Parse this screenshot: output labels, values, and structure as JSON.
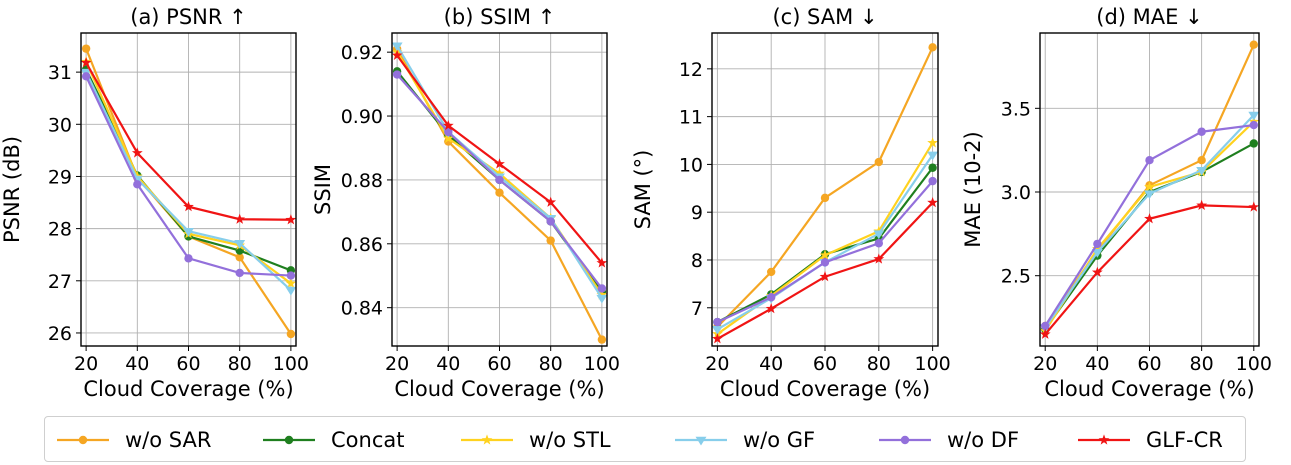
{
  "legend": [
    {
      "name": "w/o SAR",
      "color": "#f5a623",
      "marker": "circle"
    },
    {
      "name": "Concat",
      "color": "#1f7f1f",
      "marker": "circle"
    },
    {
      "name": "w/o STL",
      "color": "#ffd21f",
      "marker": "star"
    },
    {
      "name": "w/o GF",
      "color": "#87ceeb",
      "marker": "triangle-down"
    },
    {
      "name": "w/o DF",
      "color": "#9370db",
      "marker": "circle"
    },
    {
      "name": "GLF-CR",
      "color": "#f01414",
      "marker": "star"
    }
  ],
  "chart_data": [
    {
      "type": "line",
      "title": "(a) PSNR ↑",
      "xlabel": "Cloud Coverage (%)",
      "ylabel": "PSNR (dB)",
      "x": [
        20,
        40,
        60,
        80,
        100
      ],
      "xticks": [
        "20",
        "40",
        "60",
        "80",
        "100"
      ],
      "yticks": [
        "26",
        "27",
        "28",
        "29",
        "30",
        "31"
      ],
      "ytick_values": [
        26,
        27,
        28,
        29,
        30,
        31
      ],
      "xlim": [
        18,
        102
      ],
      "ylim": [
        25.75,
        31.75
      ],
      "grid": true,
      "series": [
        {
          "name": "w/o SAR",
          "values": [
            31.45,
            28.98,
            27.85,
            27.45,
            25.98
          ]
        },
        {
          "name": "Concat",
          "values": [
            31.05,
            29.02,
            27.85,
            27.58,
            27.2
          ]
        },
        {
          "name": "w/o STL",
          "values": [
            31.2,
            29.0,
            27.9,
            27.68,
            26.95
          ]
        },
        {
          "name": "w/o GF",
          "values": [
            31.0,
            28.95,
            27.95,
            27.72,
            26.82
          ]
        },
        {
          "name": "w/o DF",
          "values": [
            30.92,
            28.85,
            27.43,
            27.15,
            27.1
          ]
        },
        {
          "name": "GLF-CR",
          "values": [
            31.18,
            29.45,
            28.42,
            28.18,
            28.17
          ]
        }
      ]
    },
    {
      "type": "line",
      "title": "(b) SSIM ↑",
      "xlabel": "Cloud Coverage (%)",
      "ylabel": "SSIM",
      "x": [
        20,
        40,
        60,
        80,
        100
      ],
      "xticks": [
        "20",
        "40",
        "60",
        "80",
        "100"
      ],
      "yticks": [
        "0.84",
        "0.86",
        "0.88",
        "0.90",
        "0.92"
      ],
      "ytick_values": [
        0.84,
        0.86,
        0.88,
        0.9,
        0.92
      ],
      "xlim": [
        18,
        102
      ],
      "ylim": [
        0.828,
        0.926
      ],
      "grid": true,
      "series": [
        {
          "name": "w/o SAR",
          "values": [
            0.921,
            0.892,
            0.876,
            0.861,
            0.83
          ]
        },
        {
          "name": "Concat",
          "values": [
            0.914,
            0.894,
            0.88,
            0.867,
            0.845
          ]
        },
        {
          "name": "w/o STL",
          "values": [
            0.92,
            0.893,
            0.882,
            0.868,
            0.844
          ]
        },
        {
          "name": "w/o GF",
          "values": [
            0.922,
            0.895,
            0.881,
            0.868,
            0.843
          ]
        },
        {
          "name": "w/o DF",
          "values": [
            0.913,
            0.895,
            0.88,
            0.867,
            0.846
          ]
        },
        {
          "name": "GLF-CR",
          "values": [
            0.919,
            0.897,
            0.885,
            0.873,
            0.854
          ]
        }
      ]
    },
    {
      "type": "line",
      "title": "(c) SAM ↓",
      "xlabel": "Cloud Coverage (%)",
      "ylabel": "SAM (°)",
      "x": [
        20,
        40,
        60,
        80,
        100
      ],
      "xticks": [
        "20",
        "40",
        "60",
        "80",
        "100"
      ],
      "yticks": [
        "7",
        "8",
        "9",
        "10",
        "11",
        "12"
      ],
      "ytick_values": [
        7,
        8,
        9,
        10,
        11,
        12
      ],
      "xlim": [
        18,
        102
      ],
      "ylim": [
        6.2,
        12.75
      ],
      "grid": true,
      "series": [
        {
          "name": "w/o SAR",
          "values": [
            6.6,
            7.75,
            9.3,
            10.05,
            12.45
          ]
        },
        {
          "name": "Concat",
          "values": [
            6.7,
            7.28,
            8.12,
            8.45,
            9.93
          ]
        },
        {
          "name": "w/o STL",
          "values": [
            6.45,
            7.25,
            8.1,
            8.6,
            10.45
          ]
        },
        {
          "name": "w/o GF",
          "values": [
            6.55,
            7.2,
            7.95,
            8.55,
            10.2
          ]
        },
        {
          "name": "w/o DF",
          "values": [
            6.7,
            7.22,
            7.95,
            8.35,
            9.65
          ]
        },
        {
          "name": "GLF-CR",
          "values": [
            6.35,
            6.98,
            7.65,
            8.02,
            9.2
          ]
        }
      ]
    },
    {
      "type": "line",
      "title": "(d) MAE ↓",
      "xlabel": "Cloud Coverage (%)",
      "ylabel": "MAE (10-2)",
      "x": [
        20,
        40,
        60,
        80,
        100
      ],
      "xticks": [
        "20",
        "40",
        "60",
        "80",
        "100"
      ],
      "yticks": [
        "2.5",
        "3.0",
        "3.5"
      ],
      "ytick_values": [
        2.5,
        3.0,
        3.5
      ],
      "xlim": [
        18,
        102
      ],
      "ylim": [
        2.08,
        3.95
      ],
      "grid": true,
      "series": [
        {
          "name": "w/o SAR",
          "values": [
            2.2,
            2.65,
            3.04,
            3.19,
            3.88
          ]
        },
        {
          "name": "Concat",
          "values": [
            2.18,
            2.62,
            3.0,
            3.12,
            3.29
          ]
        },
        {
          "name": "w/o STL",
          "values": [
            2.17,
            2.66,
            3.03,
            3.12,
            3.42
          ]
        },
        {
          "name": "w/o GF",
          "values": [
            2.19,
            2.64,
            2.99,
            3.13,
            3.46
          ]
        },
        {
          "name": "w/o DF",
          "values": [
            2.2,
            2.69,
            3.19,
            3.36,
            3.4
          ]
        },
        {
          "name": "GLF-CR",
          "values": [
            2.15,
            2.52,
            2.84,
            2.92,
            2.91
          ]
        }
      ]
    }
  ]
}
